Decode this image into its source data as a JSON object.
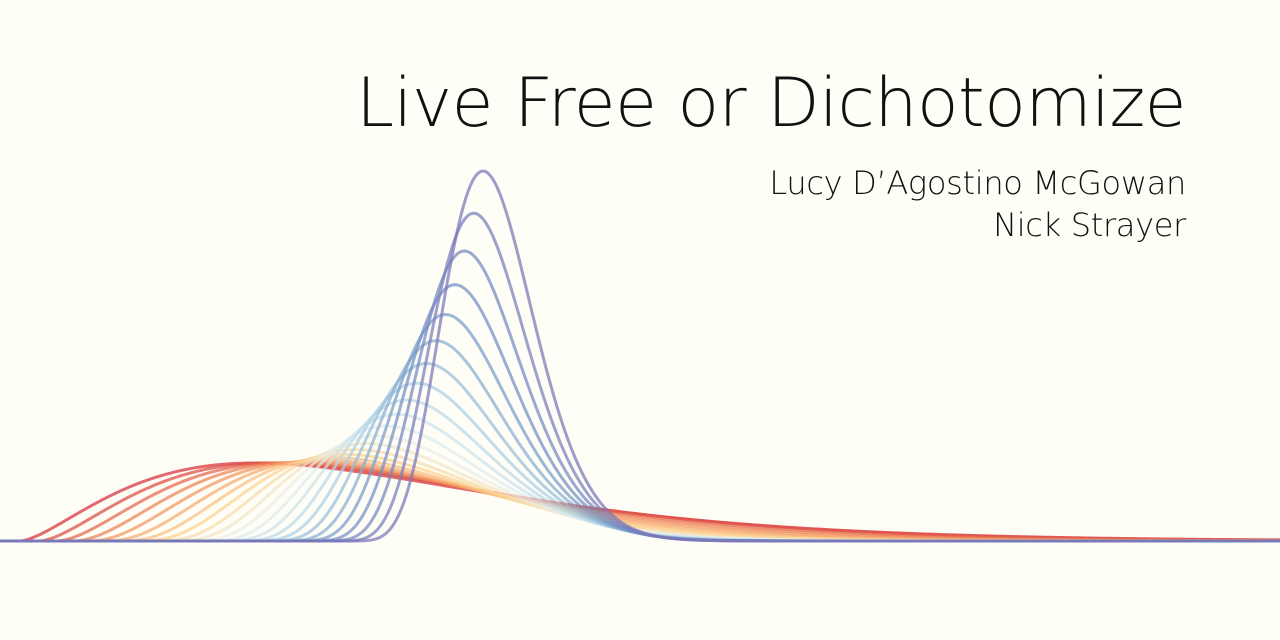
{
  "title": "Live Free or Dichotomize",
  "authors": [
    "Lucy D’Agostino McGowan",
    "Nick Strayer"
  ],
  "colors": {
    "background": "#fffef6",
    "text": "#111111",
    "palette": [
      "#d7303a",
      "#f08c58",
      "#fdd38e",
      "#e8f1f2",
      "#a9cfe4",
      "#6f93c6",
      "#7a76b8"
    ]
  }
}
